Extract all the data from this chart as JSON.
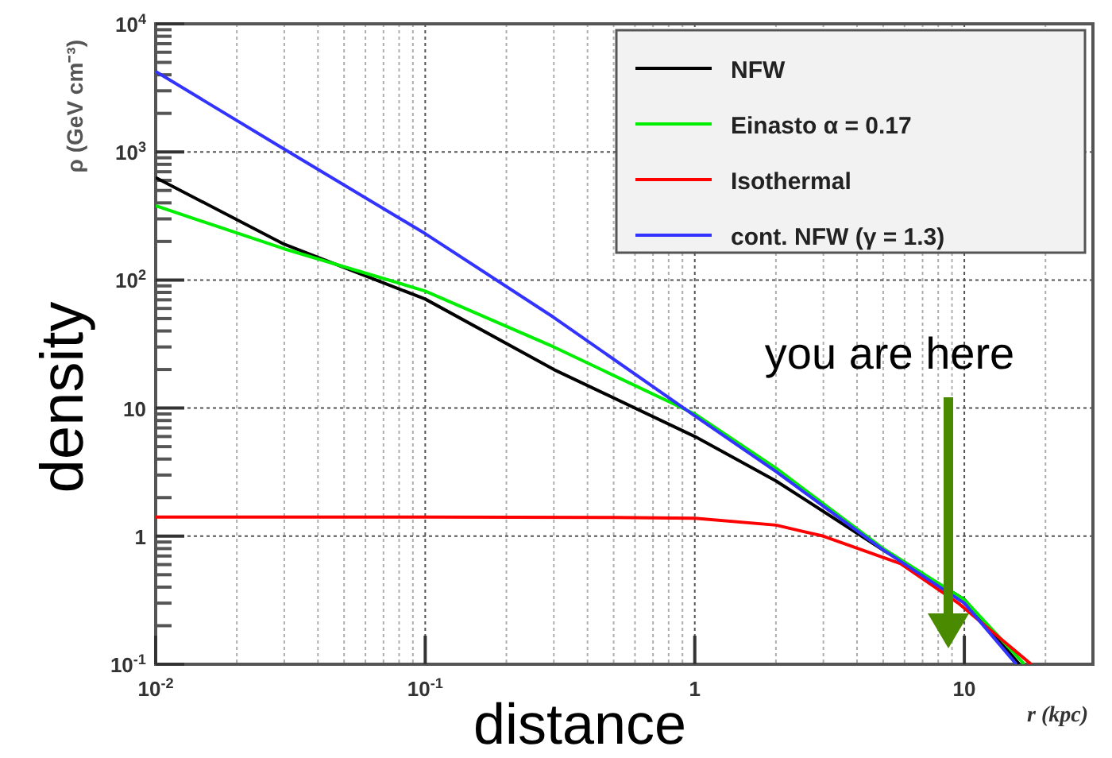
{
  "chart_data": {
    "type": "line",
    "xlabel": "r (kpc)",
    "ylabel": "ρ (GeV cm⁻³)",
    "log": "xy",
    "xlim": [
      0.01,
      30
    ],
    "xticks": [
      {
        "value": 0.01,
        "label": "10$^{-2}$"
      },
      {
        "value": 0.1,
        "label": "10$^{-1}$"
      },
      1,
      10
    ],
    "ylim": [
      0.1,
      10000
    ],
    "yticks": [
      {
        "value": 0.1,
        "label": "10$^{-1}$"
      },
      1,
      10,
      {
        "value": 100,
        "label": "10$^{2}$"
      },
      {
        "value": 1000,
        "label": "10$^{3}$"
      },
      {
        "value": 10000,
        "label": "10$^{4}$"
      }
    ],
    "grid": true,
    "legend": "top right",
    "line_style": "solid",
    "marker": "none",
    "series": [
      {
        "name": "NFW",
        "color": "#000000",
        "x": [
          0.01,
          0.03,
          0.1,
          0.3,
          1,
          2,
          5,
          10,
          16
        ],
        "values": [
          630,
          190,
          71,
          20,
          6,
          2.7,
          0.78,
          0.32,
          0.1
        ]
      },
      {
        "name": "Einasto α = 0.17",
        "color": "#00ee00",
        "x": [
          0.01,
          0.03,
          0.1,
          0.3,
          1,
          2,
          5,
          10,
          16.7
        ],
        "values": [
          380,
          175,
          82,
          30,
          9,
          3.4,
          0.8,
          0.32,
          0.1
        ]
      },
      {
        "name": "Isothermal",
        "color": "#ff0000",
        "x": [
          0.01,
          0.1,
          0.5,
          1,
          2,
          3,
          5.8,
          9.5,
          17.7
        ],
        "values": [
          1.41,
          1.41,
          1.4,
          1.38,
          1.22,
          1,
          0.61,
          0.3,
          0.1
        ]
      },
      {
        "name": "cont. NFW (γ = 1.3)",
        "color": "#3333ff",
        "x": [
          0.01,
          0.03,
          0.1,
          0.3,
          1,
          2,
          5,
          10,
          15.6
        ],
        "values": [
          4250,
          1050,
          230,
          51,
          8.7,
          3.2,
          0.78,
          0.3,
          0.1
        ]
      }
    ],
    "annotations": [
      "you are here",
      "density",
      "distance"
    ]
  }
}
